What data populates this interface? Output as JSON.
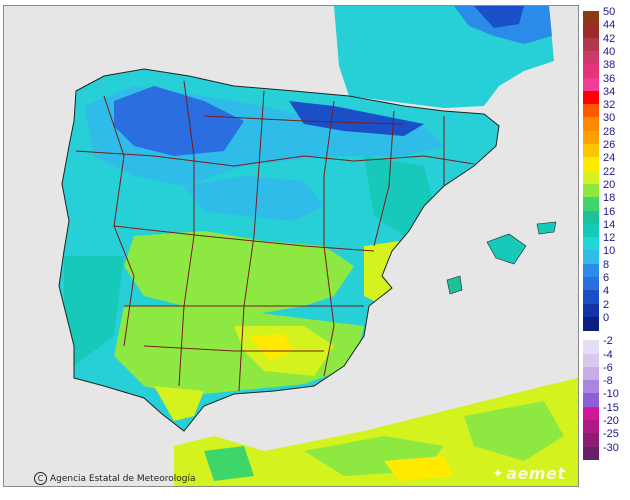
{
  "map": {
    "credit_text": "Agencia Estatal de Meteorología",
    "brand_text": "aemet",
    "colors": {
      "sea": "#e6e6e6",
      "land_base": "#27cfd6",
      "border": "#7a1b1b",
      "outline": "#222222"
    },
    "icons": [
      "copyright-icon",
      "aemet-logo-icon"
    ]
  },
  "legend": {
    "positive": [
      {
        "label": "50",
        "color": "#8b3a14"
      },
      {
        "label": "44",
        "color": "#9e2a2a"
      },
      {
        "label": "42",
        "color": "#b13a4a"
      },
      {
        "label": "40",
        "color": "#cc3a6a"
      },
      {
        "label": "38",
        "color": "#e2357a"
      },
      {
        "label": "36",
        "color": "#f23c9a"
      },
      {
        "label": "34",
        "color": "#ff0000"
      },
      {
        "label": "32",
        "color": "#ff5a00"
      },
      {
        "label": "30",
        "color": "#ff8a00"
      },
      {
        "label": "28",
        "color": "#ffa000"
      },
      {
        "label": "26",
        "color": "#ffc400"
      },
      {
        "label": "24",
        "color": "#ffea00"
      },
      {
        "label": "22",
        "color": "#d4f21e"
      },
      {
        "label": "20",
        "color": "#8ee842"
      },
      {
        "label": "18",
        "color": "#3ed66a"
      },
      {
        "label": "16",
        "color": "#1dc29a"
      },
      {
        "label": "14",
        "color": "#17c9b8"
      },
      {
        "label": "12",
        "color": "#20d6d8"
      },
      {
        "label": "10",
        "color": "#30bce8"
      },
      {
        "label": "8",
        "color": "#2a8be8"
      },
      {
        "label": "6",
        "color": "#2a6ee0"
      },
      {
        "label": "4",
        "color": "#1a4fc8"
      },
      {
        "label": "2",
        "color": "#1234a6"
      },
      {
        "label": "0",
        "color": "#0d1e80"
      }
    ],
    "negative": [
      {
        "label": "-2",
        "color": "#e6dcf4"
      },
      {
        "label": "-4",
        "color": "#d7c8ee"
      },
      {
        "label": "-6",
        "color": "#c6aee8"
      },
      {
        "label": "-8",
        "color": "#a987e0"
      },
      {
        "label": "-10",
        "color": "#8e5ed8"
      },
      {
        "label": "-15",
        "color": "#d01898"
      },
      {
        "label": "-20",
        "color": "#b01a84"
      },
      {
        "label": "-25",
        "color": "#8e1e74"
      },
      {
        "label": "-30",
        "color": "#6a2066"
      }
    ]
  }
}
